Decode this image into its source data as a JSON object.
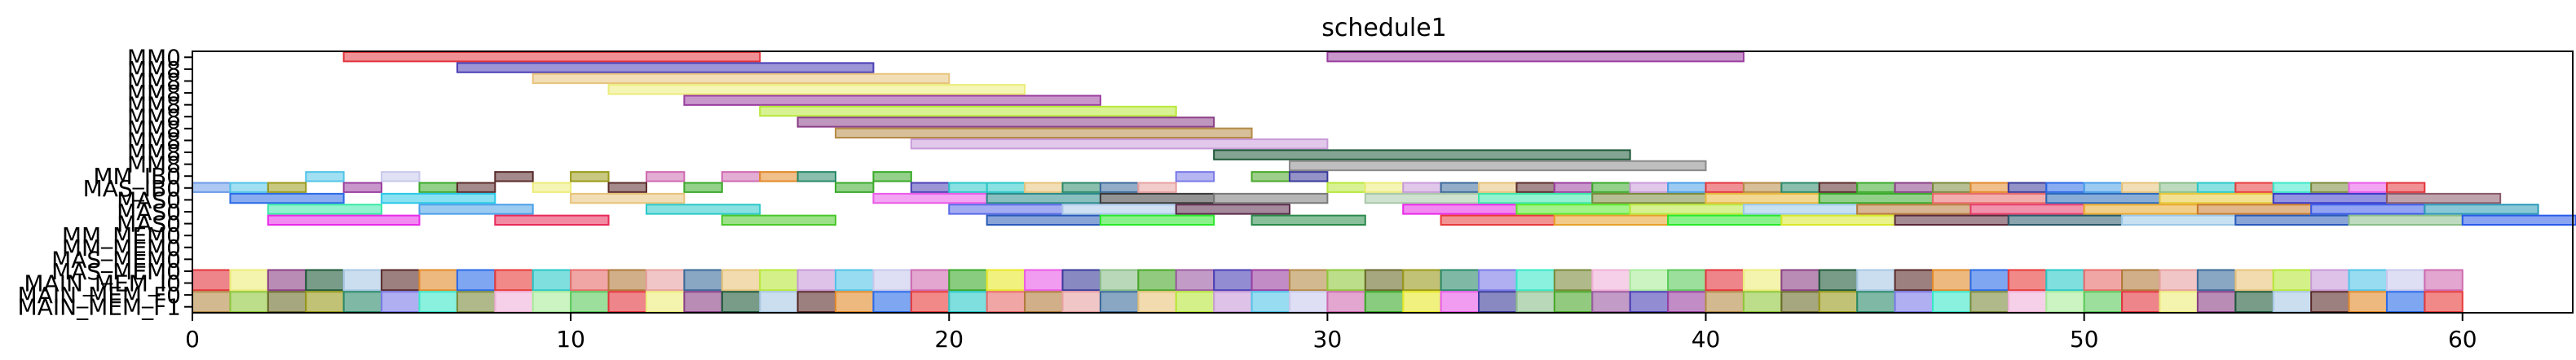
{
  "chart_data": {
    "type": "gantt",
    "title": "schedule1",
    "xlabel": "",
    "ylabel": "",
    "xlim": [
      0,
      63
    ],
    "xticks": [
      0,
      10,
      20,
      30,
      40,
      50,
      60
    ],
    "grid": false,
    "legend": "none",
    "rows": [
      "MM0",
      "MM1",
      "MM2",
      "MM3",
      "MM4",
      "MM5",
      "MM6",
      "MM7",
      "MM8",
      "MM9",
      "MM10",
      "MM_IB0",
      "MAS_IB0",
      "MAS0",
      "MAS1",
      "MAS2",
      "MM_MEM0",
      "MM_MEM1",
      "MAS_MEM0",
      "MAS_MEM1",
      "MAIN_MEM_I0",
      "MAIN_MEM_I1",
      "MAIN_MEM_F0",
      "MAIN_MEM_F1"
    ],
    "visible_row_labels": [
      "MM0",
      "MM8",
      "MM8",
      "MM8",
      "MM8",
      "MM8",
      "MM8",
      "MM8",
      "MM8",
      "MM8",
      "MM_IB0",
      "MAS_IB0",
      "MAS0",
      "MAS0",
      "MAS0",
      "MM_MEM0",
      "MM_MEM0",
      "MAS_MEM0",
      "MAS_MEM0",
      "MAIN_MEM_I0",
      "MAIN_MEM_F0",
      "MAIN_MEM_F1"
    ],
    "palette": [
      "#e3343c",
      "#4a3fb5",
      "#e7c37a",
      "#ecec7a",
      "#9a3fa0",
      "#b8e83a",
      "#8a3f86",
      "#b48a45",
      "#c89ad8",
      "#1f5a3a",
      "#8fc73a",
      "#53c4e8",
      "#a8c8e4",
      "#6a6a2a",
      "#c8c8ec",
      "#5a2a2a",
      "#9a9a1a",
      "#ce6ab0",
      "#e38a2a",
      "#2a8a6a",
      "#3aaa2a",
      "#2a6ae8",
      "#7a7ae8",
      "#e8e82a",
      "#e83a3a",
      "#3ae8c8",
      "#ea5ae8",
      "#2ac8c8",
      "#7a8a3a",
      "#3a3a9a",
      "#e86a6a",
      "#f0b0d8",
      "#8abe8a",
      "#b07a3a",
      "#a8ec9a",
      "#4aa82a",
      "#e8a0a0",
      "#5ac85a",
      "#9a5aa0",
      "#3a6a9a"
    ],
    "tasks": [
      {
        "row": 0,
        "start": 4,
        "end": 15,
        "color": "#e3343c"
      },
      {
        "row": 0,
        "start": 30,
        "end": 41,
        "color": "#9a3fa0"
      },
      {
        "row": 1,
        "start": 7,
        "end": 18,
        "color": "#4a3fb5"
      },
      {
        "row": 2,
        "start": 9,
        "end": 20,
        "color": "#e7c37a"
      },
      {
        "row": 3,
        "start": 11,
        "end": 22,
        "color": "#ecec7a"
      },
      {
        "row": 4,
        "start": 13,
        "end": 24,
        "color": "#9a3fa0"
      },
      {
        "row": 5,
        "start": 15,
        "end": 26,
        "color": "#b8e83a"
      },
      {
        "row": 6,
        "start": 16,
        "end": 27,
        "color": "#8a3f86"
      },
      {
        "row": 7,
        "start": 17,
        "end": 28,
        "color": "#b48a45"
      },
      {
        "row": 8,
        "start": 19,
        "end": 30,
        "color": "#c89ad8"
      },
      {
        "row": 9,
        "start": 27,
        "end": 38,
        "color": "#1f5a3a"
      },
      {
        "row": 10,
        "start": 29,
        "end": 40,
        "color": "#8a8a8a"
      },
      {
        "row": 11,
        "start": 3,
        "end": 4,
        "color": "#53c4e8"
      },
      {
        "row": 11,
        "start": 5,
        "end": 6,
        "color": "#c8c8ec"
      },
      {
        "row": 11,
        "start": 8,
        "end": 9,
        "color": "#5a2a2a"
      },
      {
        "row": 11,
        "start": 10,
        "end": 11,
        "color": "#9a9a1a"
      },
      {
        "row": 11,
        "start": 12,
        "end": 13,
        "color": "#ce6ab0"
      },
      {
        "row": 11,
        "start": 14,
        "end": 15,
        "color": "#ce6ab0"
      },
      {
        "row": 11,
        "start": 15,
        "end": 16,
        "color": "#e38a2a"
      },
      {
        "row": 11,
        "start": 16,
        "end": 17,
        "color": "#2a8a6a"
      },
      {
        "row": 11,
        "start": 18,
        "end": 19,
        "color": "#3aaa2a"
      },
      {
        "row": 11,
        "start": 26,
        "end": 27,
        "color": "#7a7ae8"
      },
      {
        "row": 11,
        "start": 28,
        "end": 29,
        "color": "#4aa82a"
      },
      {
        "row": 11,
        "start": 29,
        "end": 30,
        "color": "#3a3a9a"
      },
      {
        "row": 12,
        "start": 0,
        "end": 1,
        "color": "#6a9ae8"
      },
      {
        "row": 12,
        "start": 1,
        "end": 2,
        "color": "#53c4e8"
      },
      {
        "row": 12,
        "start": 2,
        "end": 3,
        "color": "#9a9a1a"
      },
      {
        "row": 12,
        "start": 4,
        "end": 5,
        "color": "#9a3fa0"
      },
      {
        "row": 12,
        "start": 6,
        "end": 7,
        "color": "#3aaa2a"
      },
      {
        "row": 12,
        "start": 7,
        "end": 8,
        "color": "#5a2a2a"
      },
      {
        "row": 12,
        "start": 9,
        "end": 10,
        "color": "#ecec7a"
      },
      {
        "row": 12,
        "start": 11,
        "end": 12,
        "color": "#5a2a2a"
      },
      {
        "row": 12,
        "start": 13,
        "end": 14,
        "color": "#3aaa2a"
      },
      {
        "row": 12,
        "start": 17,
        "end": 18,
        "color": "#3aaa2a"
      },
      {
        "row": 12,
        "start": 19,
        "end": 20,
        "color": "#4a3fb5"
      },
      {
        "row": 12,
        "start": 20,
        "end": 21,
        "color": "#2ac8c8"
      },
      {
        "row": 12,
        "start": 21,
        "end": 22,
        "color": "#2ac8c8"
      },
      {
        "row": 12,
        "start": 22,
        "end": 23,
        "color": "#e7c37a"
      },
      {
        "row": 12,
        "start": 23,
        "end": 24,
        "color": "#2a8a6a"
      },
      {
        "row": 12,
        "start": 24,
        "end": 25,
        "color": "#3a6a9a"
      },
      {
        "row": 12,
        "start": 25,
        "end": 26,
        "color": "#e8a0a0"
      },
      {
        "row": 12,
        "start": 30,
        "end": 31,
        "color": "#b8e83a"
      },
      {
        "row": 12,
        "start": 31,
        "end": 32,
        "color": "#ecec7a"
      },
      {
        "row": 12,
        "start": 32,
        "end": 33,
        "color": "#c89ad8"
      },
      {
        "row": 12,
        "start": 33,
        "end": 34,
        "color": "#3a6a9a"
      },
      {
        "row": 12,
        "start": 34,
        "end": 35,
        "color": "#e7c37a"
      },
      {
        "row": 12,
        "start": 35,
        "end": 36,
        "color": "#5a2a2a"
      },
      {
        "row": 12,
        "start": 36,
        "end": 37,
        "color": "#9a3fa0"
      },
      {
        "row": 12,
        "start": 37,
        "end": 38,
        "color": "#3aaa2a"
      },
      {
        "row": 12,
        "start": 38,
        "end": 39,
        "color": "#c89ad8"
      },
      {
        "row": 12,
        "start": 39,
        "end": 40,
        "color": "#4aa0e8"
      },
      {
        "row": 12,
        "start": 40,
        "end": 41,
        "color": "#e3343c"
      },
      {
        "row": 12,
        "start": 41,
        "end": 42,
        "color": "#b48a45"
      },
      {
        "row": 12,
        "start": 42,
        "end": 43,
        "color": "#2a8a6a"
      },
      {
        "row": 12,
        "start": 43,
        "end": 44,
        "color": "#5a2a2a"
      },
      {
        "row": 12,
        "start": 44,
        "end": 45,
        "color": "#3aaa2a"
      },
      {
        "row": 12,
        "start": 45,
        "end": 46,
        "color": "#8a3f86"
      },
      {
        "row": 12,
        "start": 46,
        "end": 47,
        "color": "#7a8a3a"
      },
      {
        "row": 12,
        "start": 47,
        "end": 48,
        "color": "#e38a2a"
      },
      {
        "row": 12,
        "start": 48,
        "end": 49,
        "color": "#3a3a9a"
      },
      {
        "row": 12,
        "start": 49,
        "end": 50,
        "color": "#2a6ae8"
      },
      {
        "row": 12,
        "start": 50,
        "end": 51,
        "color": "#4aa0e8"
      },
      {
        "row": 12,
        "start": 51,
        "end": 52,
        "color": "#e7c37a"
      },
      {
        "row": 12,
        "start": 52,
        "end": 53,
        "color": "#8abe8a"
      },
      {
        "row": 12,
        "start": 53,
        "end": 54,
        "color": "#2ac8c8"
      },
      {
        "row": 12,
        "start": 54,
        "end": 55,
        "color": "#e83a3a"
      },
      {
        "row": 12,
        "start": 55,
        "end": 56,
        "color": "#3ae8c8"
      },
      {
        "row": 12,
        "start": 56,
        "end": 57,
        "color": "#7a8a3a"
      },
      {
        "row": 12,
        "start": 57,
        "end": 58,
        "color": "#ea5ae8"
      },
      {
        "row": 12,
        "start": 58,
        "end": 59,
        "color": "#e3343c"
      },
      {
        "row": 13,
        "start": 1,
        "end": 4,
        "color": "#2a6ae8"
      },
      {
        "row": 13,
        "start": 5,
        "end": 8,
        "color": "#2ac8e8"
      },
      {
        "row": 13,
        "start": 10,
        "end": 13,
        "color": "#e7c37a"
      },
      {
        "row": 13,
        "start": 18,
        "end": 21,
        "color": "#ea5ae8"
      },
      {
        "row": 13,
        "start": 21,
        "end": 24,
        "color": "#2a8a8a"
      },
      {
        "row": 13,
        "start": 24,
        "end": 27,
        "color": "#3a3a3a"
      },
      {
        "row": 13,
        "start": 27,
        "end": 30,
        "color": "#7a7a7a"
      },
      {
        "row": 13,
        "start": 31,
        "end": 34,
        "color": "#a8c8a8"
      },
      {
        "row": 13,
        "start": 34,
        "end": 37,
        "color": "#3ae8a8"
      },
      {
        "row": 13,
        "start": 37,
        "end": 40,
        "color": "#7a8a3a"
      },
      {
        "row": 13,
        "start": 40,
        "end": 43,
        "color": "#e8b83a"
      },
      {
        "row": 13,
        "start": 43,
        "end": 46,
        "color": "#3aaa2a"
      },
      {
        "row": 13,
        "start": 46,
        "end": 49,
        "color": "#e86a6a"
      },
      {
        "row": 13,
        "start": 49,
        "end": 52,
        "color": "#2a6ab8"
      },
      {
        "row": 13,
        "start": 52,
        "end": 55,
        "color": "#e8c83a"
      },
      {
        "row": 13,
        "start": 55,
        "end": 58,
        "color": "#3a3ac8"
      },
      {
        "row": 13,
        "start": 58,
        "end": 61,
        "color": "#8a5a6a"
      },
      {
        "row": 14,
        "start": 2,
        "end": 5,
        "color": "#3ae8a8"
      },
      {
        "row": 14,
        "start": 6,
        "end": 9,
        "color": "#4aa0e8"
      },
      {
        "row": 14,
        "start": 12,
        "end": 15,
        "color": "#2ac8c8"
      },
      {
        "row": 14,
        "start": 20,
        "end": 23,
        "color": "#5a6ae8"
      },
      {
        "row": 14,
        "start": 23,
        "end": 26,
        "color": "#a8c8e8"
      },
      {
        "row": 14,
        "start": 26,
        "end": 29,
        "color": "#5a2a4a"
      },
      {
        "row": 14,
        "start": 32,
        "end": 35,
        "color": "#e82ae8"
      },
      {
        "row": 14,
        "start": 35,
        "end": 38,
        "color": "#5ae82a"
      },
      {
        "row": 14,
        "start": 38,
        "end": 41,
        "color": "#b8e83a"
      },
      {
        "row": 14,
        "start": 41,
        "end": 44,
        "color": "#9ac8e8"
      },
      {
        "row": 14,
        "start": 44,
        "end": 47,
        "color": "#b87a3a"
      },
      {
        "row": 14,
        "start": 47,
        "end": 50,
        "color": "#e83a6a"
      },
      {
        "row": 14,
        "start": 50,
        "end": 53,
        "color": "#e8a82a"
      },
      {
        "row": 14,
        "start": 53,
        "end": 56,
        "color": "#c87a2a"
      },
      {
        "row": 14,
        "start": 56,
        "end": 59,
        "color": "#3a5ae8"
      },
      {
        "row": 14,
        "start": 59,
        "end": 62,
        "color": "#2a9ab8"
      },
      {
        "row": 15,
        "start": 2,
        "end": 6,
        "color": "#e82ae8"
      },
      {
        "row": 15,
        "start": 8,
        "end": 11,
        "color": "#e82a5a"
      },
      {
        "row": 15,
        "start": 14,
        "end": 17,
        "color": "#4ac82a"
      },
      {
        "row": 15,
        "start": 21,
        "end": 24,
        "color": "#2a5ab8"
      },
      {
        "row": 15,
        "start": 24,
        "end": 27,
        "color": "#2ae82a"
      },
      {
        "row": 15,
        "start": 28,
        "end": 31,
        "color": "#2a8a4a"
      },
      {
        "row": 15,
        "start": 33,
        "end": 36,
        "color": "#e83a3a"
      },
      {
        "row": 15,
        "start": 36,
        "end": 39,
        "color": "#e8a02a"
      },
      {
        "row": 15,
        "start": 39,
        "end": 42,
        "color": "#2ae82a"
      },
      {
        "row": 15,
        "start": 42,
        "end": 45,
        "color": "#d8e82a"
      },
      {
        "row": 15,
        "start": 45,
        "end": 48,
        "color": "#5a2a3a"
      },
      {
        "row": 15,
        "start": 48,
        "end": 51,
        "color": "#2a5a6a"
      },
      {
        "row": 15,
        "start": 51,
        "end": 54,
        "color": "#9ac8e8"
      },
      {
        "row": 15,
        "start": 54,
        "end": 57,
        "color": "#2a5ab8"
      },
      {
        "row": 15,
        "start": 57,
        "end": 60,
        "color": "#8abe8a"
      },
      {
        "row": 15,
        "start": 60,
        "end": 63,
        "color": "#2a5ae8"
      }
    ],
    "mem_rows": {
      "MAIN_MEM_I0_start": 0,
      "MAIN_MEM_I0_end": 60,
      "MAIN_MEM_F1_start": 0,
      "MAIN_MEM_F1_end": 60
    }
  }
}
